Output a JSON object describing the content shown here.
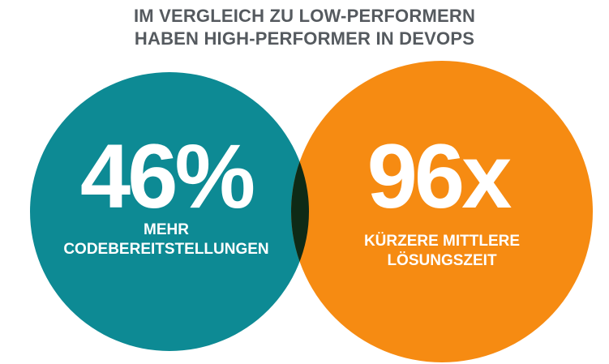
{
  "title": {
    "line1": "IM VERGLEICH ZU LOW-PERFORMERN",
    "line2": "HABEN HIGH-PERFORMER IN DEVOPS"
  },
  "left_circle": {
    "value": "46%",
    "caption_line1": "MEHR",
    "caption_line2": "CODEBEREITSTELLUNGEN",
    "color": "#0d8a94"
  },
  "right_circle": {
    "value": "96x",
    "caption_line1": "KÜRZERE MITTLERE",
    "caption_line2": "LÖSUNGSZEIT",
    "color": "#f68b12"
  },
  "overlap_color": "#0e2a16",
  "title_color": "#555a5f"
}
